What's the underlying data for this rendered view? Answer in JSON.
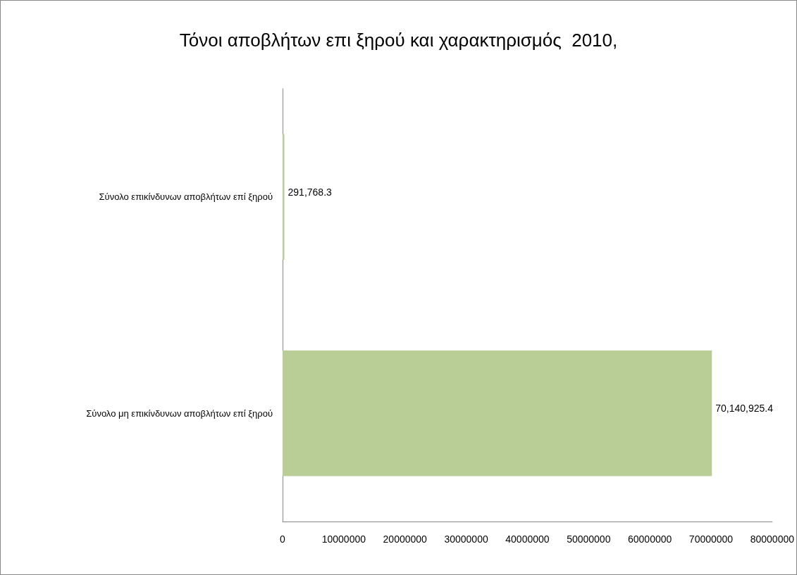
{
  "chart_data": {
    "type": "bar",
    "orientation": "horizontal",
    "title": "Τόνοι αποβλήτων επι ξηρού και χαρακτηρισμός  2010,",
    "categories": [
      "Σύνολο επικίνδυνων αποβλήτων επί ξηρού",
      "Σύνολο μη επικίνδυνων αποβλήτων επί ξηρού"
    ],
    "values": [
      291768.3,
      70140925.4
    ],
    "value_labels": [
      "291,768.3",
      "70,140,925.4"
    ],
    "color": "#b9cd96",
    "xlim": [
      0,
      80000000
    ],
    "xticks": [
      0,
      10000000,
      20000000,
      30000000,
      40000000,
      50000000,
      60000000,
      70000000,
      80000000
    ],
    "grid": false
  }
}
